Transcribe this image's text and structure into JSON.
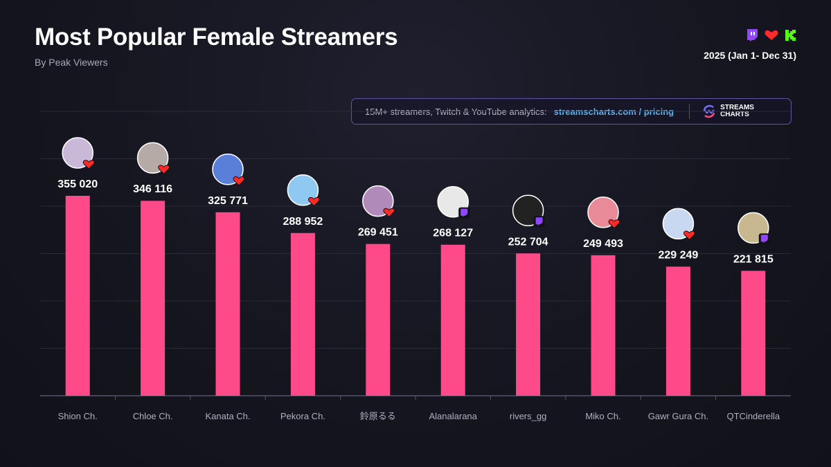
{
  "header": {
    "title": "Most Popular Female Streamers",
    "subtitle": "By Peak Viewers",
    "period": "2025 (Jan 1- Dec 31)",
    "platform_icons": [
      "twitch-icon",
      "youtube-heart-icon",
      "kick-icon"
    ]
  },
  "banner": {
    "text": "15M+ streamers, Twitch & YouTube analytics:",
    "link": "streamscharts.com / pricing",
    "logo": "STREAMS CHARTS"
  },
  "colors": {
    "bar": "#ff4a8a",
    "twitch": "#9146ff",
    "youtube": "#ff2a2a",
    "kick": "#53fc18",
    "link": "#5fb5ee"
  },
  "chart_data": {
    "type": "bar",
    "title": "Most Popular Female Streamers",
    "subtitle": "By Peak Viewers",
    "categories": [
      "Shion Ch.",
      "Chloe Ch.",
      "Kanata Ch.",
      "Pekora Ch.",
      "鈴原るる",
      "Alanalarana",
      "rivers_gg",
      "Miko Ch.",
      "Gawr Gura Ch.",
      "QTCinderella"
    ],
    "values": [
      355020,
      346116,
      325771,
      288952,
      269451,
      268127,
      252704,
      249493,
      229249,
      221815
    ],
    "labels": [
      "355 020",
      "346 116",
      "325 771",
      "288 952",
      "269 451",
      "268 127",
      "252 704",
      "249 493",
      "229 249",
      "221 815"
    ],
    "platforms": [
      "youtube",
      "youtube",
      "youtube",
      "youtube",
      "youtube",
      "twitch",
      "twitch",
      "youtube",
      "youtube",
      "twitch"
    ],
    "ylim": [
      0,
      470000
    ],
    "grid": true
  }
}
